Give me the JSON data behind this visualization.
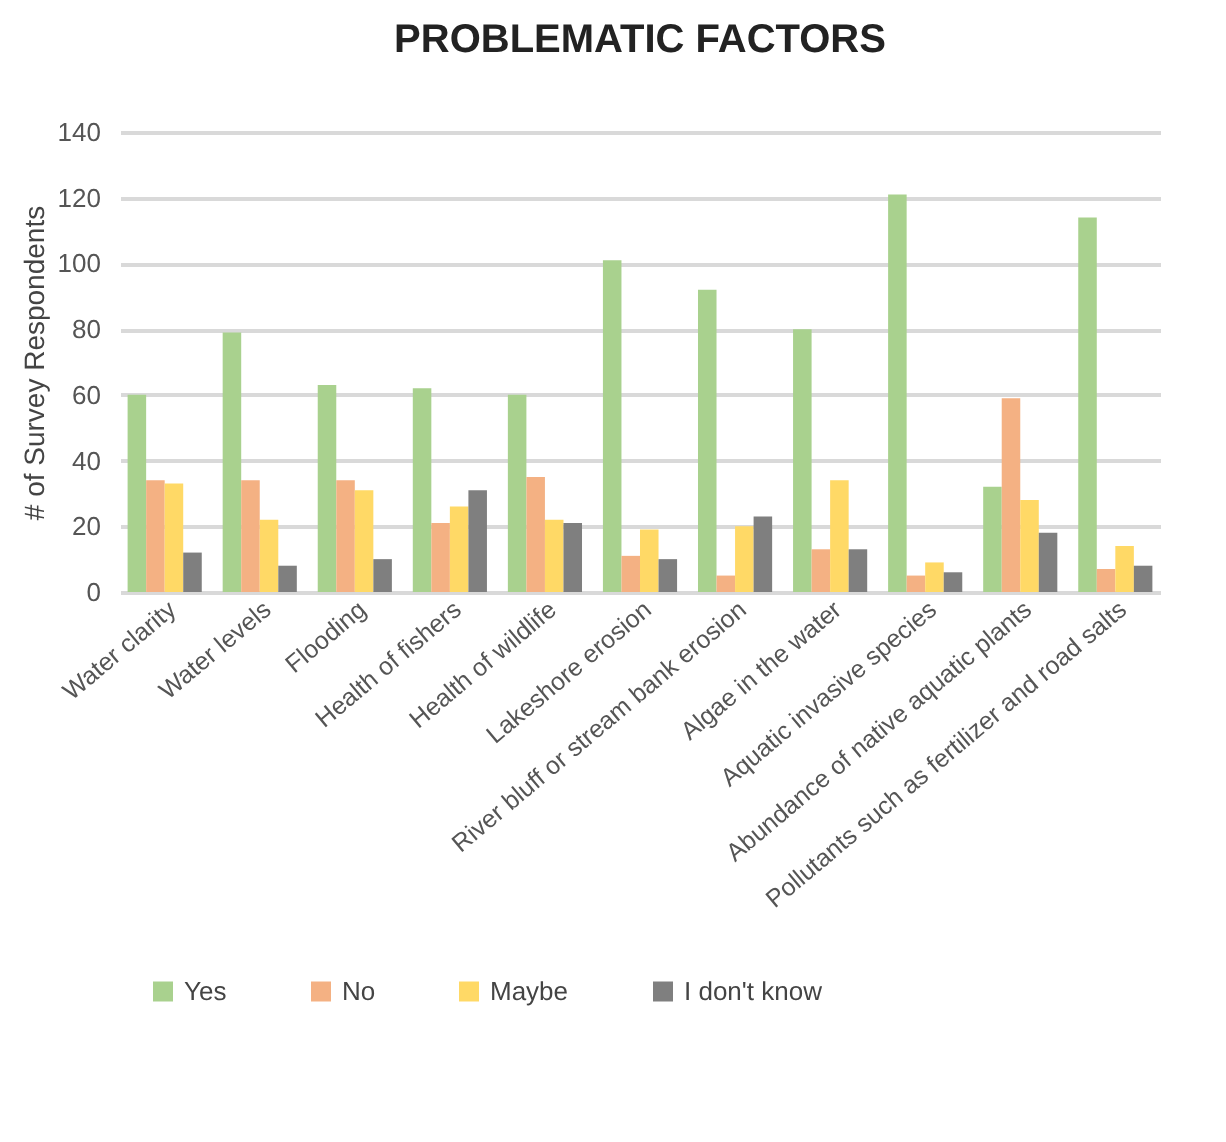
{
  "chart_data": {
    "type": "bar",
    "title": "PROBLEMATIC FACTORS",
    "ylabel": "# of Survey Respondents",
    "categories": [
      "Water clarity",
      "Water levels",
      "Flooding",
      "Health of fishers",
      "Health of wildlife",
      "Lakeshore erosion",
      "River bluff or stream bank erosion",
      "Algae in the water",
      "Aquatic invasive species",
      "Abundance of native aquatic plants",
      "Pollutants such as fertilizer and road salts"
    ],
    "series": [
      {
        "name": "Yes",
        "color": "#a9d18e",
        "values": [
          60,
          79,
          63,
          62,
          60,
          101,
          92,
          80,
          121,
          32,
          114
        ]
      },
      {
        "name": "No",
        "color": "#f4b183",
        "values": [
          34,
          34,
          34,
          21,
          35,
          11,
          5,
          13,
          5,
          59,
          7
        ]
      },
      {
        "name": "Maybe",
        "color": "#ffd966",
        "values": [
          33,
          22,
          31,
          26,
          22,
          19,
          20,
          34,
          9,
          28,
          14
        ]
      },
      {
        "name": "I don't know",
        "color": "#7f7f7f",
        "values": [
          12,
          8,
          10,
          31,
          21,
          10,
          23,
          13,
          6,
          18,
          8
        ]
      }
    ],
    "ylim": [
      0,
      140
    ],
    "yticks": [
      0,
      20,
      40,
      60,
      80,
      100,
      120,
      140
    ],
    "grid": "y",
    "legend": "bottom"
  }
}
